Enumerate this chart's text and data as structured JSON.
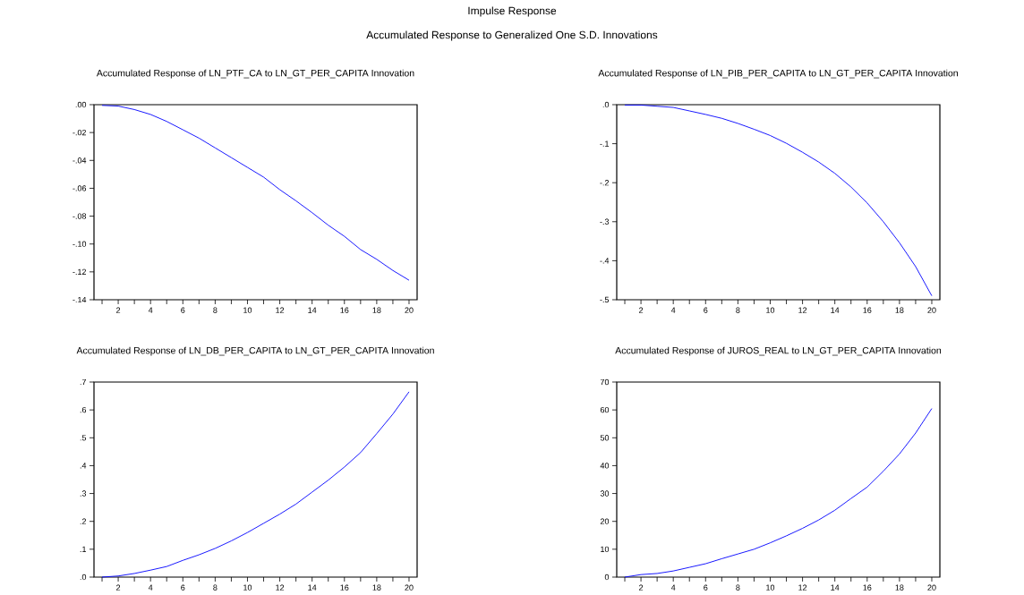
{
  "chart_data": [
    {
      "type": "other",
      "title": "Impulse Response",
      "subtitle": "Accumulated Response to Generalized One S.D. Innovations"
    },
    {
      "type": "line",
      "title": "Accumulated Response of LN_PTF_CA to LN_GT_PER_CAPITA Innovation",
      "x": [
        1,
        2,
        3,
        4,
        5,
        6,
        7,
        8,
        9,
        10,
        11,
        12,
        13,
        14,
        15,
        16,
        17,
        18,
        19,
        20
      ],
      "series": [
        {
          "color": "#0000ff",
          "values": [
            -0.0005,
            -0.001,
            -0.0035,
            -0.007,
            -0.012,
            -0.018,
            -0.024,
            -0.031,
            -0.038,
            -0.045,
            -0.052,
            -0.061,
            -0.069,
            -0.0775,
            -0.0865,
            -0.0945,
            -0.104,
            -0.111,
            -0.119,
            -0.126
          ]
        }
      ],
      "xlim": [
        0.5,
        20.5
      ],
      "ylim": [
        -0.14,
        0
      ],
      "xticks": [
        {
          "value": 1,
          "label": null
        },
        2,
        {
          "value": 3,
          "label": null
        },
        4,
        {
          "value": 5,
          "label": null
        },
        6,
        {
          "value": 7,
          "label": null
        },
        8,
        {
          "value": 9,
          "label": null
        },
        10,
        {
          "value": 11,
          "label": null
        },
        12,
        {
          "value": 13,
          "label": null
        },
        14,
        {
          "value": 15,
          "label": null
        },
        16,
        {
          "value": 17,
          "label": null
        },
        18,
        {
          "value": 19,
          "label": null
        },
        20
      ],
      "yticks": [
        {
          "value": -0.14,
          "label": "-.14"
        },
        {
          "value": -0.12,
          "label": "-.12"
        },
        {
          "value": -0.1,
          "label": "-.10"
        },
        {
          "value": -0.08,
          "label": "-.08"
        },
        {
          "value": -0.06,
          "label": "-.06"
        },
        {
          "value": -0.04,
          "label": "-.04"
        },
        {
          "value": -0.02,
          "label": "-.02"
        },
        {
          "value": 0,
          "label": ".00"
        }
      ],
      "grid": false,
      "marker": "none",
      "line_style": "solid"
    },
    {
      "type": "line",
      "title": "Accumulated Response of LN_PIB_PER_CAPITA to LN_GT_PER_CAPITA Innovation",
      "x": [
        1,
        2,
        3,
        4,
        5,
        6,
        7,
        8,
        9,
        10,
        11,
        12,
        13,
        14,
        15,
        16,
        17,
        18,
        19,
        20
      ],
      "series": [
        {
          "color": "#0000ff",
          "values": [
            -0.001,
            -0.001,
            -0.004,
            -0.007,
            -0.016,
            -0.025,
            -0.035,
            -0.048,
            -0.063,
            -0.079,
            -0.099,
            -0.122,
            -0.147,
            -0.176,
            -0.211,
            -0.252,
            -0.3,
            -0.354,
            -0.415,
            -0.49
          ]
        }
      ],
      "xlim": [
        0.5,
        20.5
      ],
      "ylim": [
        -0.5,
        0
      ],
      "xticks": [
        {
          "value": 1,
          "label": null
        },
        2,
        {
          "value": 3,
          "label": null
        },
        4,
        {
          "value": 5,
          "label": null
        },
        6,
        {
          "value": 7,
          "label": null
        },
        8,
        {
          "value": 9,
          "label": null
        },
        10,
        {
          "value": 11,
          "label": null
        },
        12,
        {
          "value": 13,
          "label": null
        },
        14,
        {
          "value": 15,
          "label": null
        },
        16,
        {
          "value": 17,
          "label": null
        },
        18,
        {
          "value": 19,
          "label": null
        },
        20
      ],
      "yticks": [
        {
          "value": -0.5,
          "label": "-.5"
        },
        {
          "value": -0.4,
          "label": "-.4"
        },
        {
          "value": -0.3,
          "label": "-.3"
        },
        {
          "value": -0.2,
          "label": "-.2"
        },
        {
          "value": -0.1,
          "label": "-.1"
        },
        {
          "value": 0,
          "label": ".0"
        }
      ],
      "grid": false,
      "marker": "none",
      "line_style": "solid"
    },
    {
      "type": "line",
      "title": "Accumulated Response of LN_DB_PER_CAPITA to LN_GT_PER_CAPITA Innovation",
      "x": [
        1,
        2,
        3,
        4,
        5,
        6,
        7,
        8,
        9,
        10,
        11,
        12,
        13,
        14,
        15,
        16,
        17,
        18,
        19,
        20
      ],
      "series": [
        {
          "color": "#0000ff",
          "values": [
            0.0,
            0.004,
            0.013,
            0.025,
            0.038,
            0.06,
            0.08,
            0.103,
            0.13,
            0.16,
            0.193,
            0.226,
            0.262,
            0.305,
            0.348,
            0.395,
            0.447,
            0.515,
            0.585,
            0.665
          ]
        }
      ],
      "xlim": [
        0.5,
        20.5
      ],
      "ylim": [
        0,
        0.7
      ],
      "xticks": [
        {
          "value": 1,
          "label": null
        },
        2,
        {
          "value": 3,
          "label": null
        },
        4,
        {
          "value": 5,
          "label": null
        },
        6,
        {
          "value": 7,
          "label": null
        },
        8,
        {
          "value": 9,
          "label": null
        },
        10,
        {
          "value": 11,
          "label": null
        },
        12,
        {
          "value": 13,
          "label": null
        },
        14,
        {
          "value": 15,
          "label": null
        },
        16,
        {
          "value": 17,
          "label": null
        },
        18,
        {
          "value": 19,
          "label": null
        },
        20
      ],
      "yticks": [
        {
          "value": 0,
          "label": ".0"
        },
        {
          "value": 0.1,
          "label": ".1"
        },
        {
          "value": 0.2,
          "label": ".2"
        },
        {
          "value": 0.3,
          "label": ".3"
        },
        {
          "value": 0.4,
          "label": ".4"
        },
        {
          "value": 0.5,
          "label": ".5"
        },
        {
          "value": 0.6,
          "label": ".6"
        },
        {
          "value": 0.7,
          "label": ".7"
        }
      ],
      "grid": false,
      "marker": "none",
      "line_style": "solid"
    },
    {
      "type": "line",
      "title": "Accumulated Response of JUROS_REAL to LN_GT_PER_CAPITA Innovation",
      "x": [
        1,
        2,
        3,
        4,
        5,
        6,
        7,
        8,
        9,
        10,
        11,
        12,
        13,
        14,
        15,
        16,
        17,
        18,
        19,
        20
      ],
      "series": [
        {
          "color": "#0000ff",
          "values": [
            0,
            0.9,
            1.3,
            2.2,
            3.5,
            4.8,
            6.6,
            8.3,
            10,
            12.3,
            14.8,
            17.5,
            20.5,
            24,
            28.2,
            32.3,
            38,
            44.2,
            51.7,
            60.5
          ]
        }
      ],
      "xlim": [
        0.5,
        20.5
      ],
      "ylim": [
        0,
        70
      ],
      "xticks": [
        {
          "value": 1,
          "label": null
        },
        2,
        {
          "value": 3,
          "label": null
        },
        4,
        {
          "value": 5,
          "label": null
        },
        6,
        {
          "value": 7,
          "label": null
        },
        8,
        {
          "value": 9,
          "label": null
        },
        10,
        {
          "value": 11,
          "label": null
        },
        12,
        {
          "value": 13,
          "label": null
        },
        14,
        {
          "value": 15,
          "label": null
        },
        16,
        {
          "value": 17,
          "label": null
        },
        18,
        {
          "value": 19,
          "label": null
        },
        20
      ],
      "yticks": [
        0,
        10,
        20,
        30,
        40,
        50,
        60,
        70
      ],
      "grid": false,
      "marker": "none",
      "line_style": "solid"
    }
  ]
}
